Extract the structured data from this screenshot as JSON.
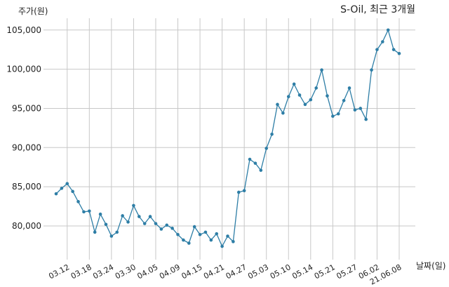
{
  "chart_data": {
    "type": "line",
    "title": "S-Oil, 최근 3개월",
    "ylabel": "주가(원)",
    "xlabel": "날짜(일)",
    "ylim": [
      75700,
      106500
    ],
    "yticks": [
      80000,
      85000,
      90000,
      95000,
      100000,
      105000
    ],
    "ytick_labels": [
      "80,000",
      "85,000",
      "90,000",
      "95,000",
      "100,000",
      "105,000"
    ],
    "xtick_labels": [
      "03.12",
      "03.18",
      "03.24",
      "03.30",
      "04.05",
      "04.09",
      "04.15",
      "04.21",
      "04.27",
      "05.03",
      "05.10",
      "05.14",
      "05.21",
      "05.27",
      "06.02",
      "21.06.08"
    ],
    "xtick_indices": [
      2,
      6,
      10,
      14,
      18,
      22,
      26,
      30,
      34,
      38,
      42,
      46,
      50,
      54,
      58,
      62
    ],
    "grid": true,
    "line_color": "#2e7ea6",
    "series": [
      {
        "values": [
          84100,
          84800,
          85400,
          84400,
          83100,
          81800,
          81900,
          79200,
          81500,
          80200,
          78700,
          79200,
          81300,
          80500,
          82600,
          81200,
          80300,
          81200,
          80300,
          79600,
          80100,
          79700,
          78900,
          78200,
          77800,
          79900,
          78900,
          79200,
          78200,
          79000,
          77400,
          78700,
          78000,
          84300,
          84500,
          88500,
          88000,
          87100,
          89900,
          91700,
          95500,
          94400,
          96500,
          98100,
          96700,
          95500,
          96100,
          97600,
          99900,
          96600,
          94000,
          94300,
          96000,
          97600,
          94800,
          95000,
          93600,
          99900,
          102500,
          103500,
          105000,
          102500,
          102000
        ]
      }
    ]
  }
}
